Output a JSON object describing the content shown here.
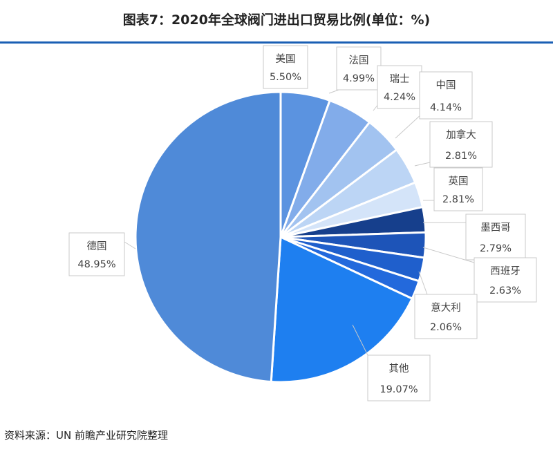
{
  "title": "图表7：2020年全球阀门进出口贸易比例(单位：%)",
  "source": "资料来源：UN 前瞻产业研究院整理",
  "chart_data": {
    "type": "pie",
    "title": "图表7：2020年全球阀门进出口贸易比例(单位：%)",
    "slices": [
      {
        "label": "美国",
        "value_label": "5.50%",
        "value": 5.5,
        "color": "#5b93e0"
      },
      {
        "label": "法国",
        "value_label": "4.99%",
        "value": 4.99,
        "color": "#82acea"
      },
      {
        "label": "瑞士",
        "value_label": "4.24%",
        "value": 4.24,
        "color": "#a2c3f0"
      },
      {
        "label": "中国",
        "value_label": "4.14%",
        "value": 4.14,
        "color": "#bcd5f5"
      },
      {
        "label": "加拿大",
        "value_label": "2.81%",
        "value": 2.81,
        "color": "#d4e4f9"
      },
      {
        "label": "英国",
        "value_label": "2.81%",
        "value": 2.81,
        "color": "#163f8c"
      },
      {
        "label": "墨西哥",
        "value_label": "2.79%",
        "value": 2.79,
        "color": "#1d54b8"
      },
      {
        "label": "西班牙",
        "value_label": "2.63%",
        "value": 2.63,
        "color": "#1f5fcc"
      },
      {
        "label": "意大利",
        "value_label": "2.06%",
        "value": 2.06,
        "color": "#2369dc"
      },
      {
        "label": "其他",
        "value_label": "19.07%",
        "value": 19.07,
        "color": "#1e7ff0"
      },
      {
        "label": "德国",
        "value_label": "48.95%",
        "value": 48.95,
        "color": "#4f8ad8"
      }
    ]
  }
}
